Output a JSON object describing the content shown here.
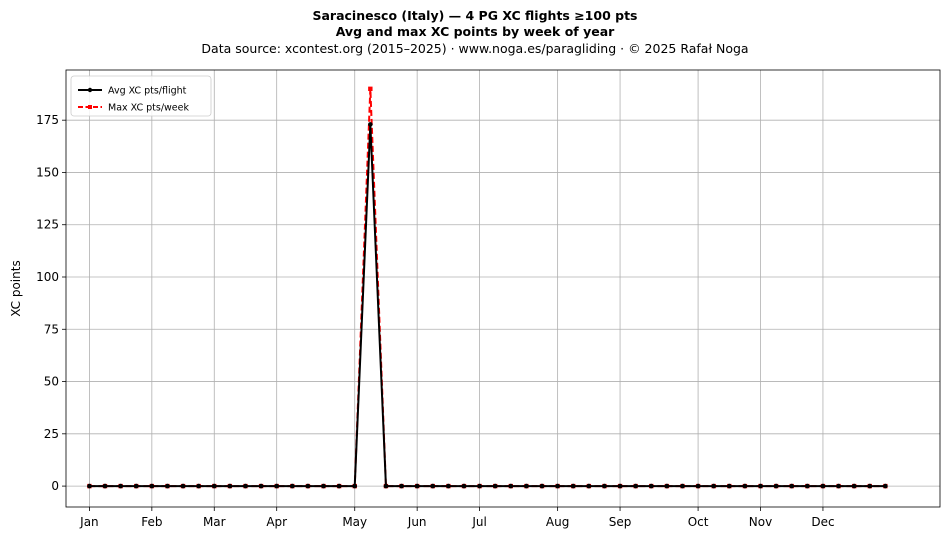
{
  "header": {
    "title": "Saracinesco (Italy)  —  4 PG XC flights ≥100 pts",
    "subtitle": "Avg and max XC points by week of year",
    "source": "Data source: xcontest.org (2015–2025)  ·  www.noga.es/paragliding  ·  © 2025 Rafał Noga"
  },
  "chart_data": {
    "type": "line",
    "title": "Saracinesco (Italy)  —  4 PG XC flights ≥100 pts",
    "subtitle": "Avg and max XC points by week of year",
    "xlabel": "",
    "ylabel": "XC points",
    "xlim": [
      -1.5,
      54.5
    ],
    "ylim": [
      -10,
      199
    ],
    "yticks": [
      0,
      25,
      50,
      75,
      100,
      125,
      150,
      175
    ],
    "xticks": [
      {
        "label": "Jan",
        "week": 0
      },
      {
        "label": "Feb",
        "week": 4
      },
      {
        "label": "Mar",
        "week": 8
      },
      {
        "label": "Apr",
        "week": 12
      },
      {
        "label": "May",
        "week": 17
      },
      {
        "label": "Jun",
        "week": 21
      },
      {
        "label": "Jul",
        "week": 25
      },
      {
        "label": "Aug",
        "week": 30
      },
      {
        "label": "Sep",
        "week": 34
      },
      {
        "label": "Oct",
        "week": 39
      },
      {
        "label": "Nov",
        "week": 43
      },
      {
        "label": "Dec",
        "week": 47
      }
    ],
    "grid": true,
    "legend_position": "top-left",
    "x": [
      0,
      1,
      2,
      3,
      4,
      5,
      6,
      7,
      8,
      9,
      10,
      11,
      12,
      13,
      14,
      15,
      16,
      17,
      18,
      19,
      20,
      21,
      22,
      23,
      24,
      25,
      26,
      27,
      28,
      29,
      30,
      31,
      32,
      33,
      34,
      35,
      36,
      37,
      38,
      39,
      40,
      41,
      42,
      43,
      44,
      45,
      46,
      47,
      48,
      49,
      50,
      51
    ],
    "series": [
      {
        "name": "Avg XC pts/flight",
        "color": "#000000",
        "style": "solid",
        "marker": "circle",
        "values": [
          0,
          0,
          0,
          0,
          0,
          0,
          0,
          0,
          0,
          0,
          0,
          0,
          0,
          0,
          0,
          0,
          0,
          0,
          173,
          0,
          0,
          0,
          0,
          0,
          0,
          0,
          0,
          0,
          0,
          0,
          0,
          0,
          0,
          0,
          0,
          0,
          0,
          0,
          0,
          0,
          0,
          0,
          0,
          0,
          0,
          0,
          0,
          0,
          0,
          0,
          0,
          0
        ]
      },
      {
        "name": "Max XC pts/week",
        "color": "#ff0000",
        "style": "dashed",
        "marker": "square",
        "values": [
          0,
          0,
          0,
          0,
          0,
          0,
          0,
          0,
          0,
          0,
          0,
          0,
          0,
          0,
          0,
          0,
          0,
          0,
          190,
          0,
          0,
          0,
          0,
          0,
          0,
          0,
          0,
          0,
          0,
          0,
          0,
          0,
          0,
          0,
          0,
          0,
          0,
          0,
          0,
          0,
          0,
          0,
          0,
          0,
          0,
          0,
          0,
          0,
          0,
          0,
          0,
          0
        ]
      }
    ]
  }
}
